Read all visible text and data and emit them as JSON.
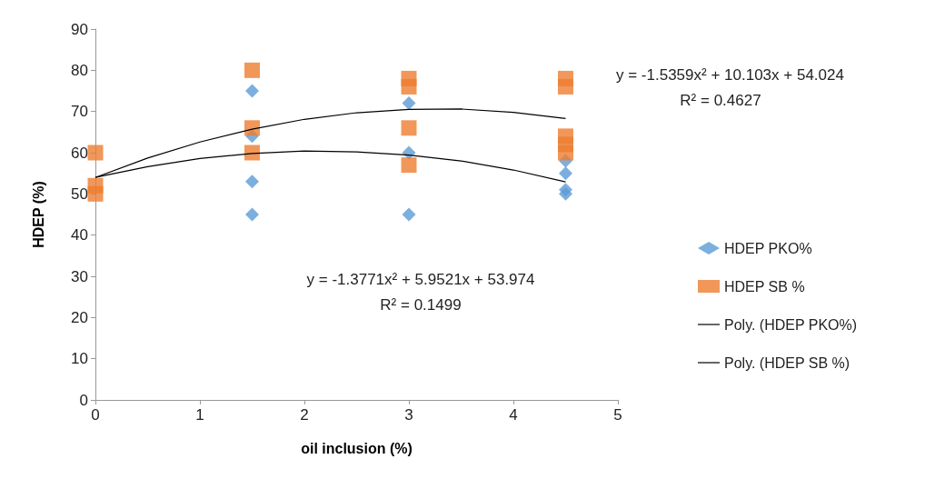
{
  "chart_data": {
    "type": "scatter",
    "xlabel": "oil inclusion (%)",
    "ylabel": "HDEP (%)",
    "xlim": [
      0,
      5
    ],
    "xticks": [
      0,
      1,
      2,
      3,
      4,
      5
    ],
    "ylim": [
      0,
      90
    ],
    "yticks": [
      0,
      10,
      20,
      30,
      40,
      50,
      60,
      70,
      80,
      90
    ],
    "grid": false,
    "legend": "right",
    "series": [
      {
        "name": "HDEP PKO%",
        "type": "scatter",
        "marker": "diamond",
        "color": "#5b9bd5",
        "x": [
          1.5,
          1.5,
          1.5,
          1.5,
          3,
          3,
          3,
          4.5,
          4.5,
          4.5,
          4.5
        ],
        "values": [
          75,
          64,
          53,
          45,
          72,
          60,
          45,
          58,
          55,
          51,
          50
        ]
      },
      {
        "name": "HDEP SB %",
        "type": "scatter",
        "marker": "square",
        "color": "#ed7d31",
        "x": [
          0,
          0,
          0,
          1.5,
          1.5,
          1.5,
          3,
          3,
          3,
          3,
          4.5,
          4.5,
          4.5,
          4.5,
          4.5
        ],
        "values": [
          60,
          52,
          50,
          80,
          66,
          60,
          78,
          76,
          66,
          57,
          78,
          76,
          64,
          62,
          60
        ]
      },
      {
        "name": "Poly. (HDEP PKO%)",
        "type": "line",
        "marker": "none",
        "color": "#000000",
        "x": [
          0,
          0.5,
          1,
          1.5,
          2,
          2.5,
          3,
          3.5,
          4,
          4.5
        ],
        "values": [
          54.0,
          56.6,
          58.6,
          59.8,
          60.4,
          60.2,
          59.4,
          58.0,
          55.8,
          52.9
        ]
      },
      {
        "name": "Poly. (HDEP SB %)",
        "type": "line",
        "marker": "none",
        "color": "#000000",
        "x": [
          0,
          0.5,
          1,
          1.5,
          2,
          2.5,
          3,
          3.5,
          4,
          4.5
        ],
        "values": [
          54.0,
          58.7,
          62.6,
          65.7,
          68.1,
          69.7,
          70.5,
          70.6,
          69.8,
          68.3
        ]
      }
    ],
    "annotations": [
      "y = -1.5359x² + 10.103x + 54.024",
      "R² = 0.4627",
      "y = -1.3771x² + 5.9521x + 53.974",
      "R² = 0.1499"
    ]
  }
}
